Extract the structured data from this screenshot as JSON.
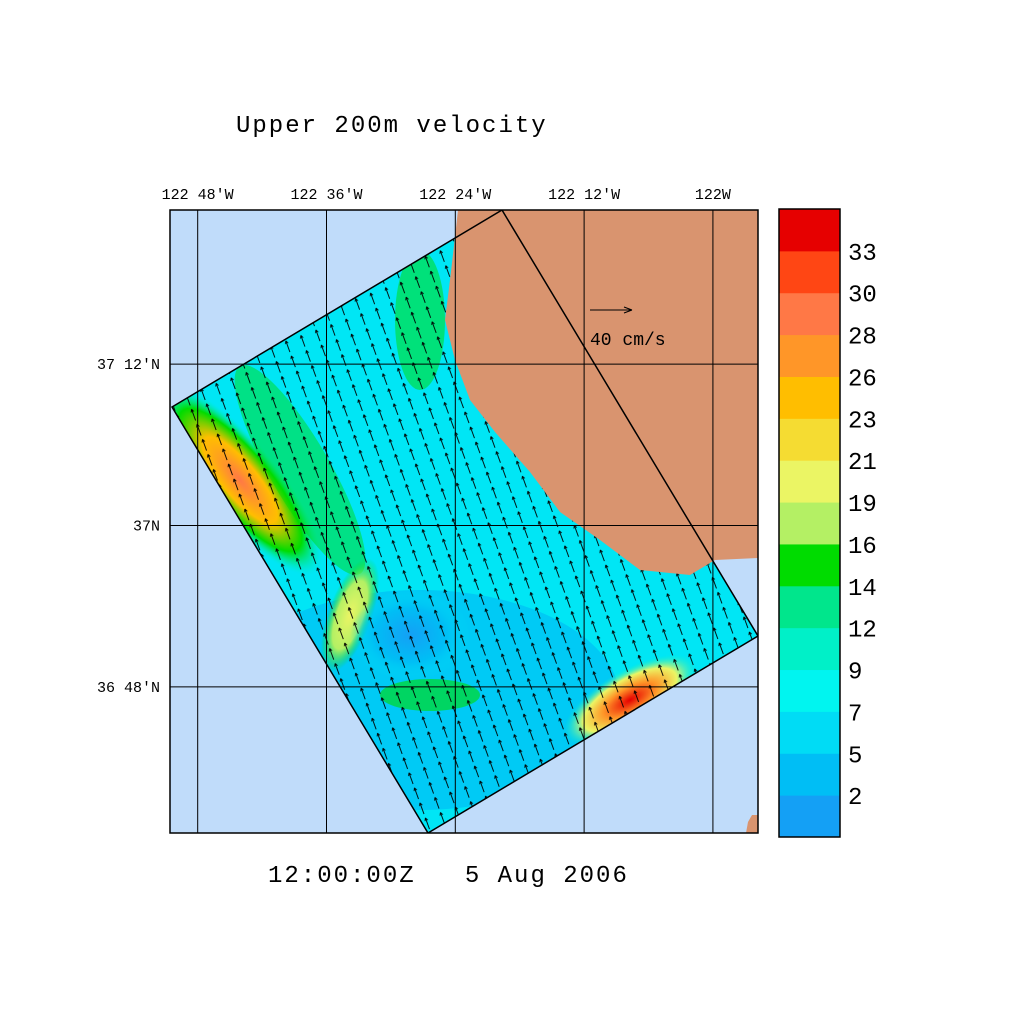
{
  "map": {
    "title": "Upper 200m velocity",
    "timestamp": "12:00:00Z   5 Aug 2006",
    "scale_label": "40 cm/s",
    "xlim": [
      -122.843,
      -121.93
    ],
    "ylim": [
      36.619,
      37.391
    ],
    "x_ticks": [
      {
        "value": -122.8,
        "label": "122 48'W"
      },
      {
        "value": -122.6,
        "label": "122 36'W"
      },
      {
        "value": -122.4,
        "label": "122 24'W"
      },
      {
        "value": -122.2,
        "label": "122 12'W"
      },
      {
        "value": -122.0,
        "label": "122W"
      }
    ],
    "y_ticks": [
      {
        "value": 37.2,
        "label": "37 12'N"
      },
      {
        "value": 37.0,
        "label": "37N"
      },
      {
        "value": 36.8,
        "label": "36 48'N"
      }
    ],
    "colorbar": {
      "levels": [
        2,
        5,
        7,
        9,
        12,
        14,
        16,
        19,
        21,
        23,
        26,
        28,
        30,
        33
      ],
      "colors": [
        "#14a0f5",
        "#00bef5",
        "#00dcf5",
        "#00f5f0",
        "#00f0c8",
        "#00e68c",
        "#00dc00",
        "#b4f064",
        "#ebf564",
        "#f5dc32",
        "#ffbe00",
        "#ff9628",
        "#ff7846",
        "#ff4614",
        "#e60000"
      ]
    }
  }
}
